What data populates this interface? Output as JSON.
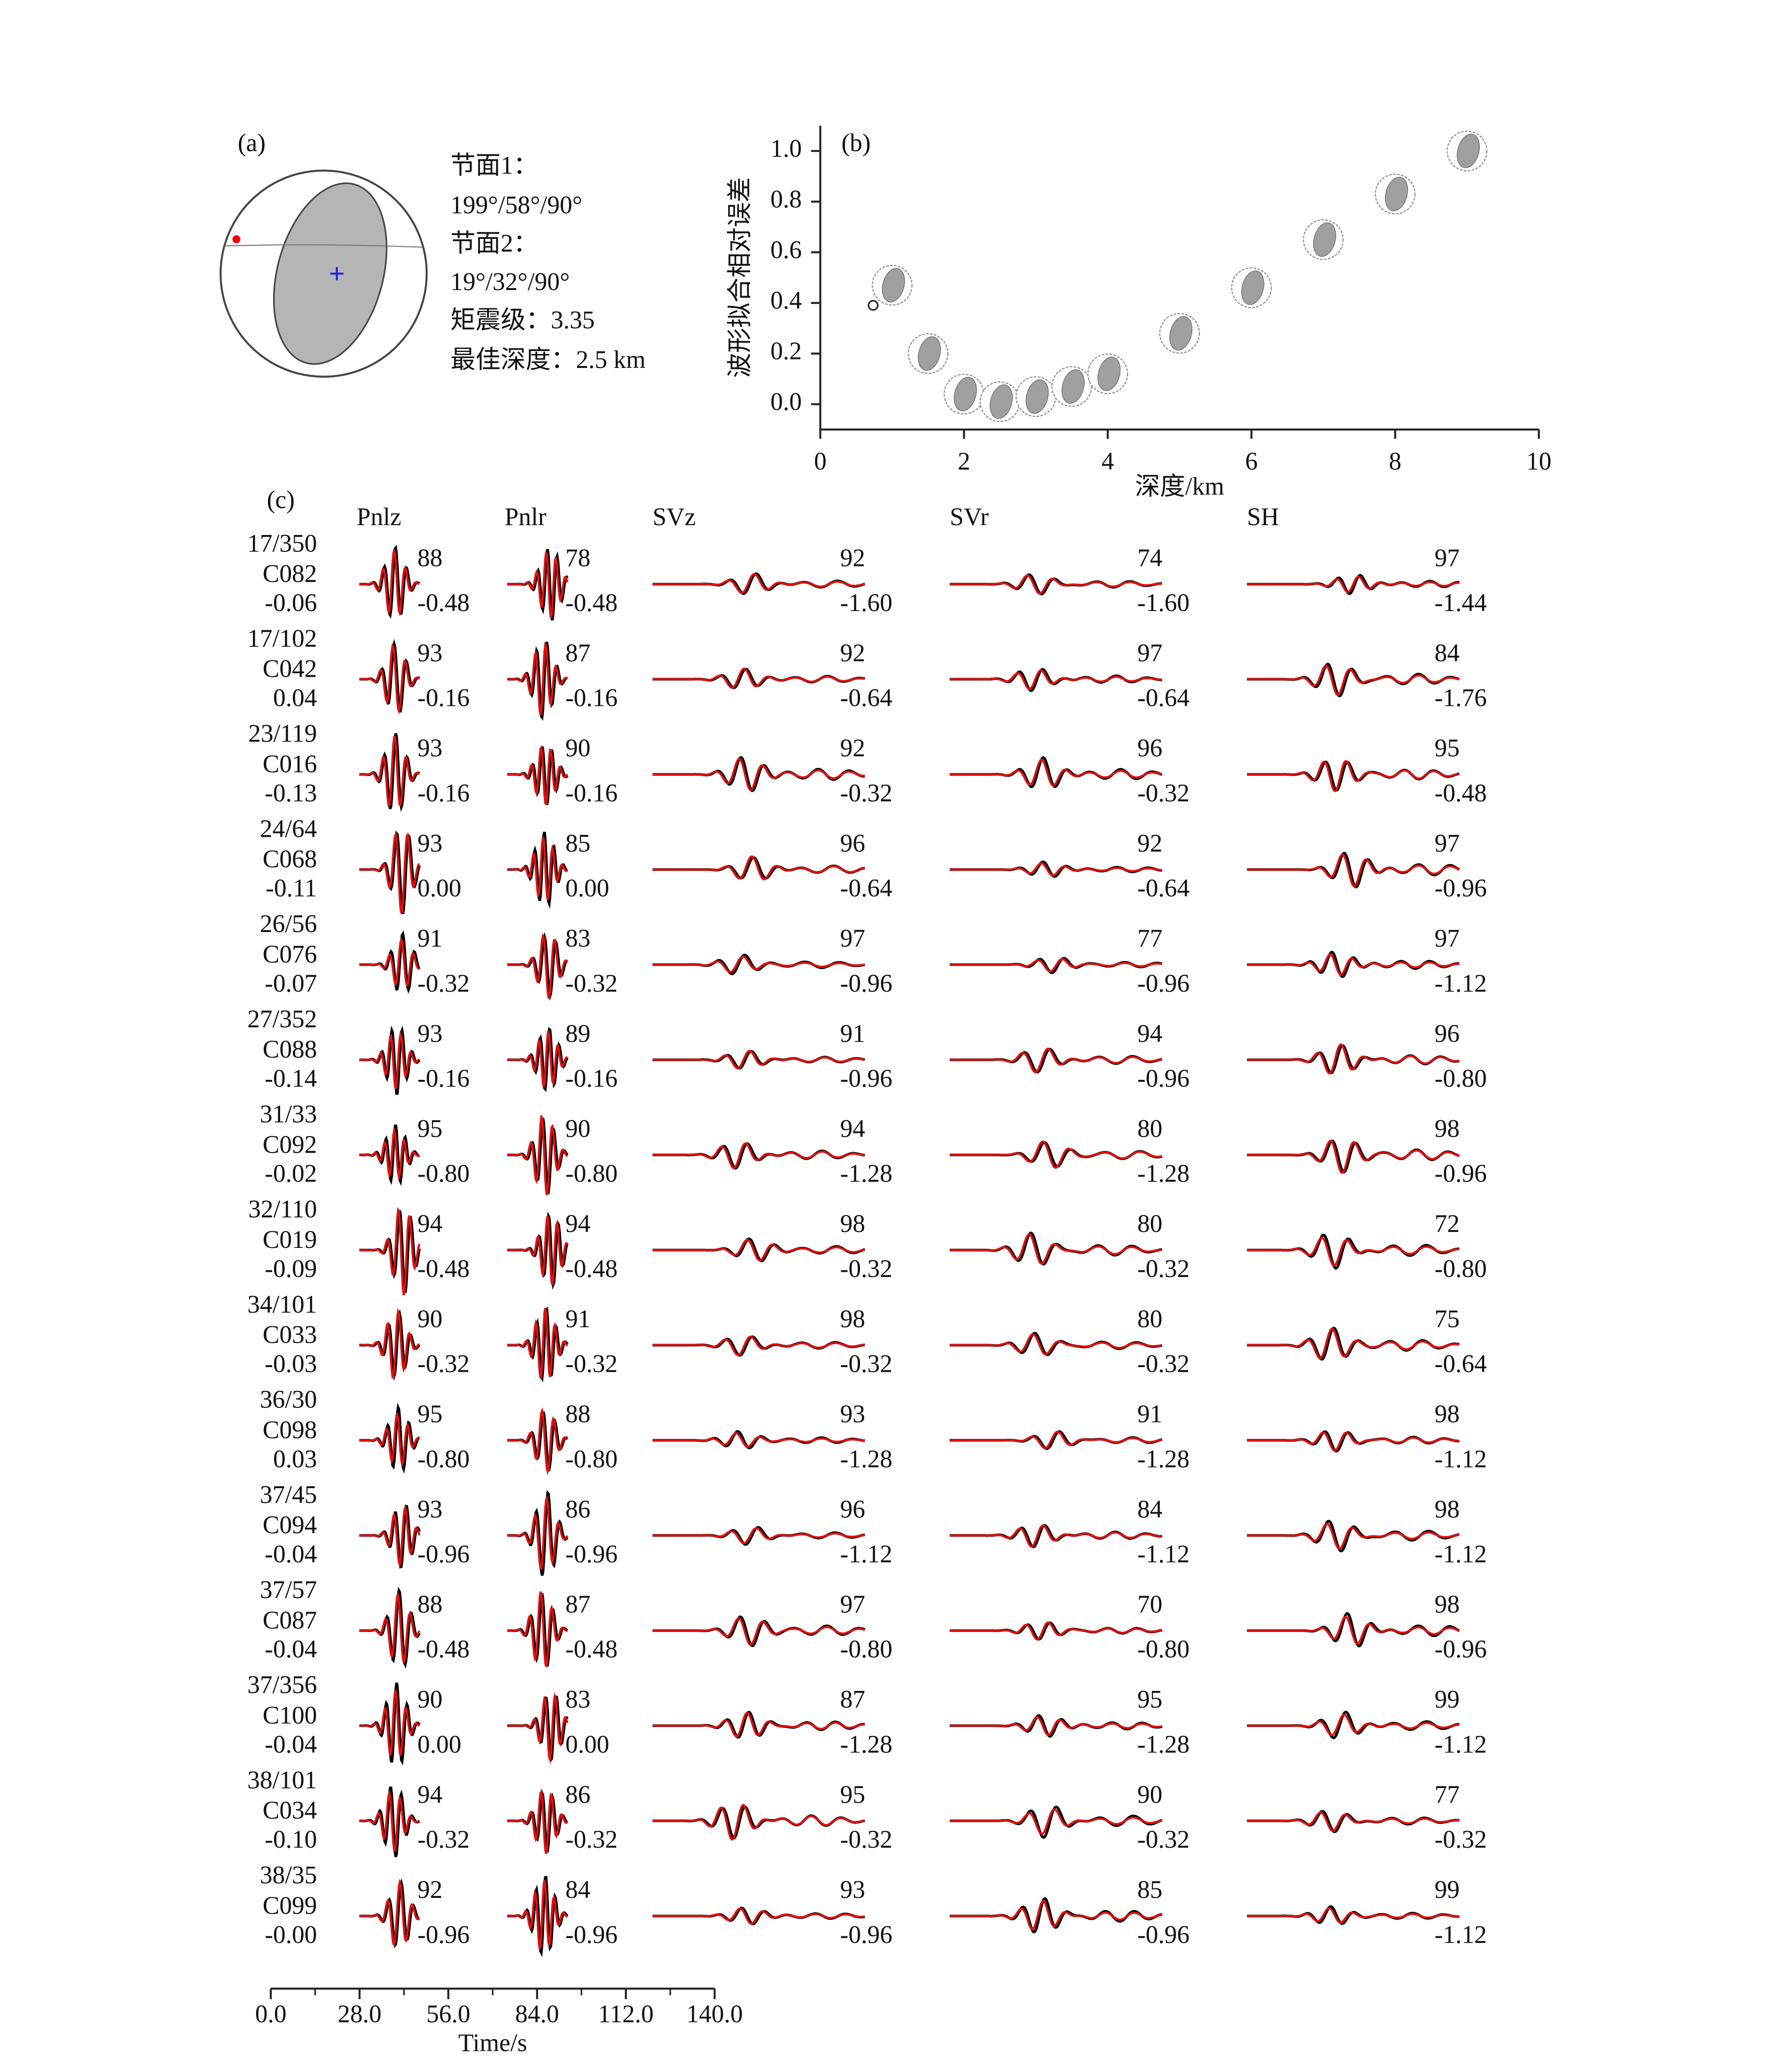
{
  "panel_a": {
    "label": "(a)",
    "lines": [
      "节面1：",
      "199°/58°/90°",
      "节面2：",
      "19°/32°/90°",
      "矩震级：3.35",
      "最佳深度：2.5 km"
    ]
  },
  "chart_data": {
    "type": "scatter",
    "label": "(b)",
    "xlabel": "深度/km",
    "ylabel": "波形拟合相对误差",
    "x": [
      1,
      1.5,
      2,
      2.5,
      3,
      3.5,
      4,
      5,
      6,
      7,
      8,
      9
    ],
    "values": [
      0.47,
      0.2,
      0.04,
      0.01,
      0.03,
      0.07,
      0.12,
      0.28,
      0.46,
      0.65,
      0.83,
      1.0
    ],
    "xlim": [
      0,
      10
    ],
    "ylim": [
      -0.1,
      1.1
    ],
    "xticks": [
      0,
      2,
      4,
      6,
      8,
      10
    ],
    "yticks": [
      {
        "value": 0,
        "label": "0.0"
      },
      {
        "value": 0.2,
        "label": "0.2"
      },
      {
        "value": 0.4,
        "label": "0.4"
      },
      {
        "value": 0.6,
        "label": "0.6"
      },
      {
        "value": 0.8,
        "label": "0.8"
      },
      {
        "value": 1,
        "label": "1.0"
      }
    ],
    "color": "#a0a0a0"
  },
  "panel_c": {
    "label": "(c)",
    "components": [
      "Pnlz",
      "Pnlr",
      "SVz",
      "SVr",
      "SH"
    ],
    "rows": [
      {
        "dist_az": "17/350",
        "station": "C082",
        "shift": "-0.06",
        "cc": [
          "88",
          "78",
          "92",
          "74",
          "97"
        ],
        "lag": [
          "-0.48",
          "-0.48",
          "-1.60",
          "-1.60",
          "-1.44"
        ]
      },
      {
        "dist_az": "17/102",
        "station": "C042",
        "shift": "0.04",
        "cc": [
          "93",
          "87",
          "92",
          "97",
          "84"
        ],
        "lag": [
          "-0.16",
          "-0.16",
          "-0.64",
          "-0.64",
          "-1.76"
        ]
      },
      {
        "dist_az": "23/119",
        "station": "C016",
        "shift": "-0.13",
        "cc": [
          "93",
          "90",
          "92",
          "96",
          "95"
        ],
        "lag": [
          "-0.16",
          "-0.16",
          "-0.32",
          "-0.32",
          "-0.48"
        ]
      },
      {
        "dist_az": "24/64",
        "station": "C068",
        "shift": "-0.11",
        "cc": [
          "93",
          "85",
          "96",
          "92",
          "97"
        ],
        "lag": [
          "0.00",
          "0.00",
          "-0.64",
          "-0.64",
          "-0.96"
        ]
      },
      {
        "dist_az": "26/56",
        "station": "C076",
        "shift": "-0.07",
        "cc": [
          "91",
          "83",
          "97",
          "77",
          "97"
        ],
        "lag": [
          "-0.32",
          "-0.32",
          "-0.96",
          "-0.96",
          "-1.12"
        ]
      },
      {
        "dist_az": "27/352",
        "station": "C088",
        "shift": "-0.14",
        "cc": [
          "93",
          "89",
          "91",
          "94",
          "96"
        ],
        "lag": [
          "-0.16",
          "-0.16",
          "-0.96",
          "-0.96",
          "-0.80"
        ]
      },
      {
        "dist_az": "31/33",
        "station": "C092",
        "shift": "-0.02",
        "cc": [
          "95",
          "90",
          "94",
          "80",
          "98"
        ],
        "lag": [
          "-0.80",
          "-0.80",
          "-1.28",
          "-1.28",
          "-0.96"
        ]
      },
      {
        "dist_az": "32/110",
        "station": "C019",
        "shift": "-0.09",
        "cc": [
          "94",
          "94",
          "98",
          "80",
          "72"
        ],
        "lag": [
          "-0.48",
          "-0.48",
          "-0.32",
          "-0.32",
          "-0.80"
        ]
      },
      {
        "dist_az": "34/101",
        "station": "C033",
        "shift": "-0.03",
        "cc": [
          "90",
          "91",
          "98",
          "80",
          "75"
        ],
        "lag": [
          "-0.32",
          "-0.32",
          "-0.32",
          "-0.32",
          "-0.64"
        ]
      },
      {
        "dist_az": "36/30",
        "station": "C098",
        "shift": "0.03",
        "cc": [
          "95",
          "88",
          "93",
          "91",
          "98"
        ],
        "lag": [
          "-0.80",
          "-0.80",
          "-1.28",
          "-1.28",
          "-1.12"
        ]
      },
      {
        "dist_az": "37/45",
        "station": "C094",
        "shift": "-0.04",
        "cc": [
          "93",
          "86",
          "96",
          "84",
          "98"
        ],
        "lag": [
          "-0.96",
          "-0.96",
          "-1.12",
          "-1.12",
          "-1.12"
        ]
      },
      {
        "dist_az": "37/57",
        "station": "C087",
        "shift": "-0.04",
        "cc": [
          "88",
          "87",
          "97",
          "70",
          "98"
        ],
        "lag": [
          "-0.48",
          "-0.48",
          "-0.80",
          "-0.80",
          "-0.96"
        ]
      },
      {
        "dist_az": "37/356",
        "station": "C100",
        "shift": "-0.04",
        "cc": [
          "90",
          "83",
          "87",
          "95",
          "99"
        ],
        "lag": [
          "0.00",
          "0.00",
          "-1.28",
          "-1.28",
          "-1.12"
        ]
      },
      {
        "dist_az": "38/101",
        "station": "C034",
        "shift": "-0.10",
        "cc": [
          "94",
          "86",
          "95",
          "90",
          "77"
        ],
        "lag": [
          "-0.32",
          "-0.32",
          "-0.32",
          "-0.32",
          "-0.32"
        ]
      },
      {
        "dist_az": "38/35",
        "station": "C099",
        "shift": "-0.00",
        "cc": [
          "92",
          "84",
          "93",
          "85",
          "99"
        ],
        "lag": [
          "-0.96",
          "-0.96",
          "-0.96",
          "-0.96",
          "-1.12"
        ]
      }
    ],
    "time_axis": {
      "label": "Time/s",
      "xlim": [
        0,
        140
      ],
      "xticks": [
        {
          "value": 0,
          "label": "0.0"
        },
        {
          "value": 28,
          "label": "28.0"
        },
        {
          "value": 56,
          "label": "56.0"
        },
        {
          "value": 84,
          "label": "84.0"
        },
        {
          "value": 112,
          "label": "112.0"
        },
        {
          "value": 140,
          "label": "140.0"
        }
      ],
      "minor_xticks": [
        14,
        42,
        70,
        98,
        126
      ]
    }
  }
}
